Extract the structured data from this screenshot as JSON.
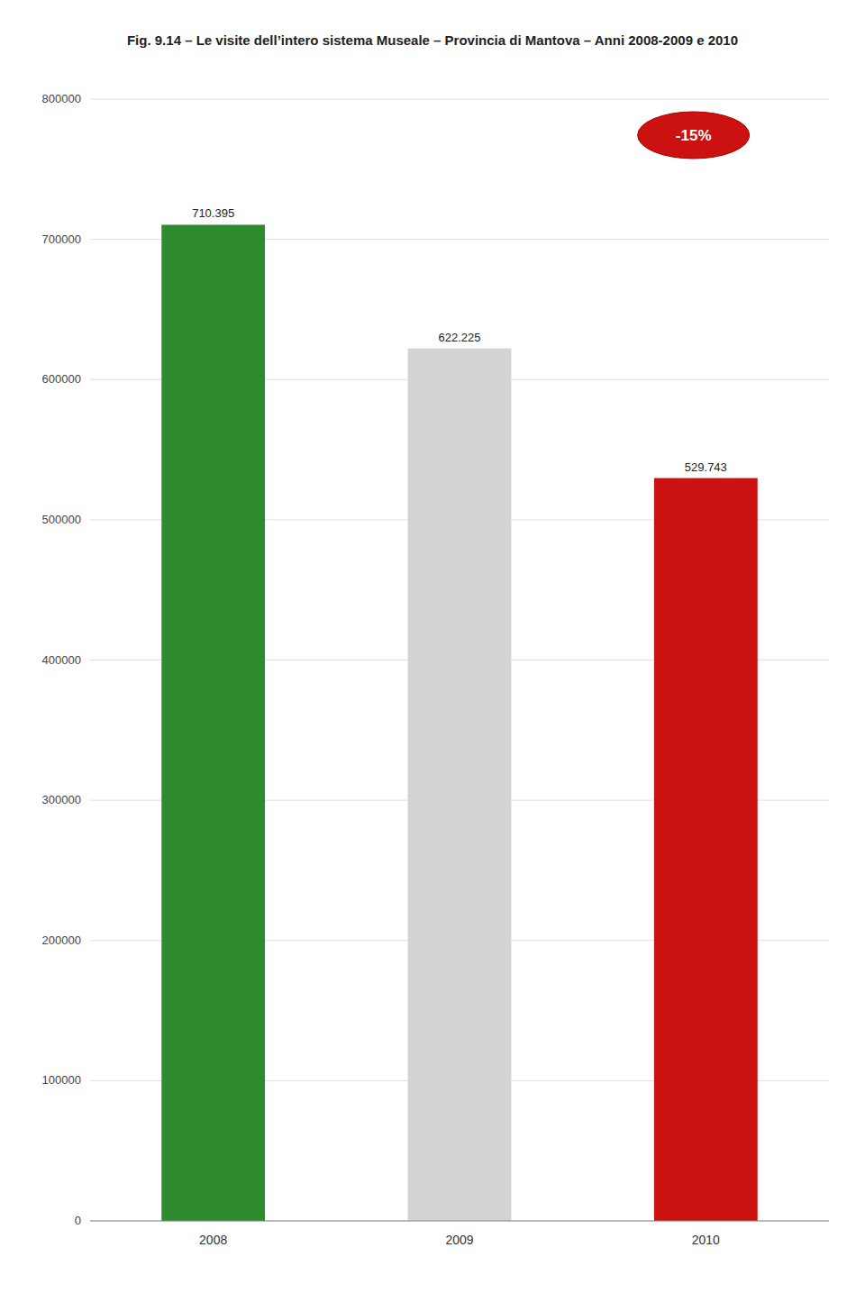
{
  "chart_data": {
    "type": "bar",
    "title": "Fig. 9.14 – Le visite dell’intero sistema Museale – Provincia di Mantova – Anni 2008-2009 e 2010",
    "categories": [
      "2008",
      "2009",
      "2010"
    ],
    "values": [
      710395,
      622225,
      529743
    ],
    "value_labels": [
      "710.395",
      "622.225",
      "529.743"
    ],
    "colors": [
      "#2e8b2e",
      "#d3d3d3",
      "#cc1111"
    ],
    "ylim": [
      0,
      800000
    ],
    "yticks": [
      0,
      100000,
      200000,
      300000,
      400000,
      500000,
      600000,
      700000,
      800000
    ],
    "grid": true,
    "data_labels": true,
    "annotations": [
      "-15%"
    ]
  }
}
